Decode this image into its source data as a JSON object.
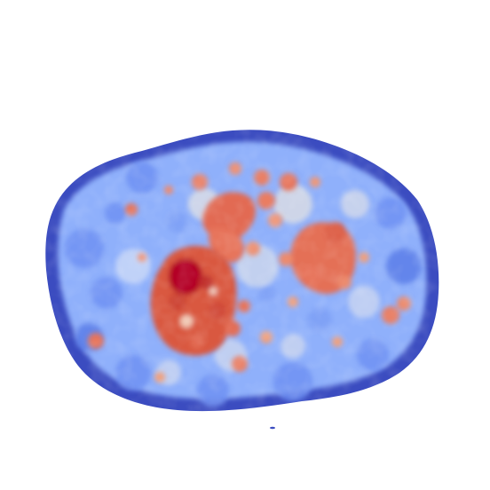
{
  "image": {
    "type": "heatmap",
    "colormap": "coolwarm",
    "background_color": "#ffffff",
    "colors": {
      "low": "#3b4cc0",
      "low_mid": "#6f92f3",
      "mid_low": "#aac7fd",
      "mid": "#dddcdc",
      "mid_high": "#f7b89c",
      "high_mid": "#e7745b",
      "high": "#b40426"
    }
  }
}
